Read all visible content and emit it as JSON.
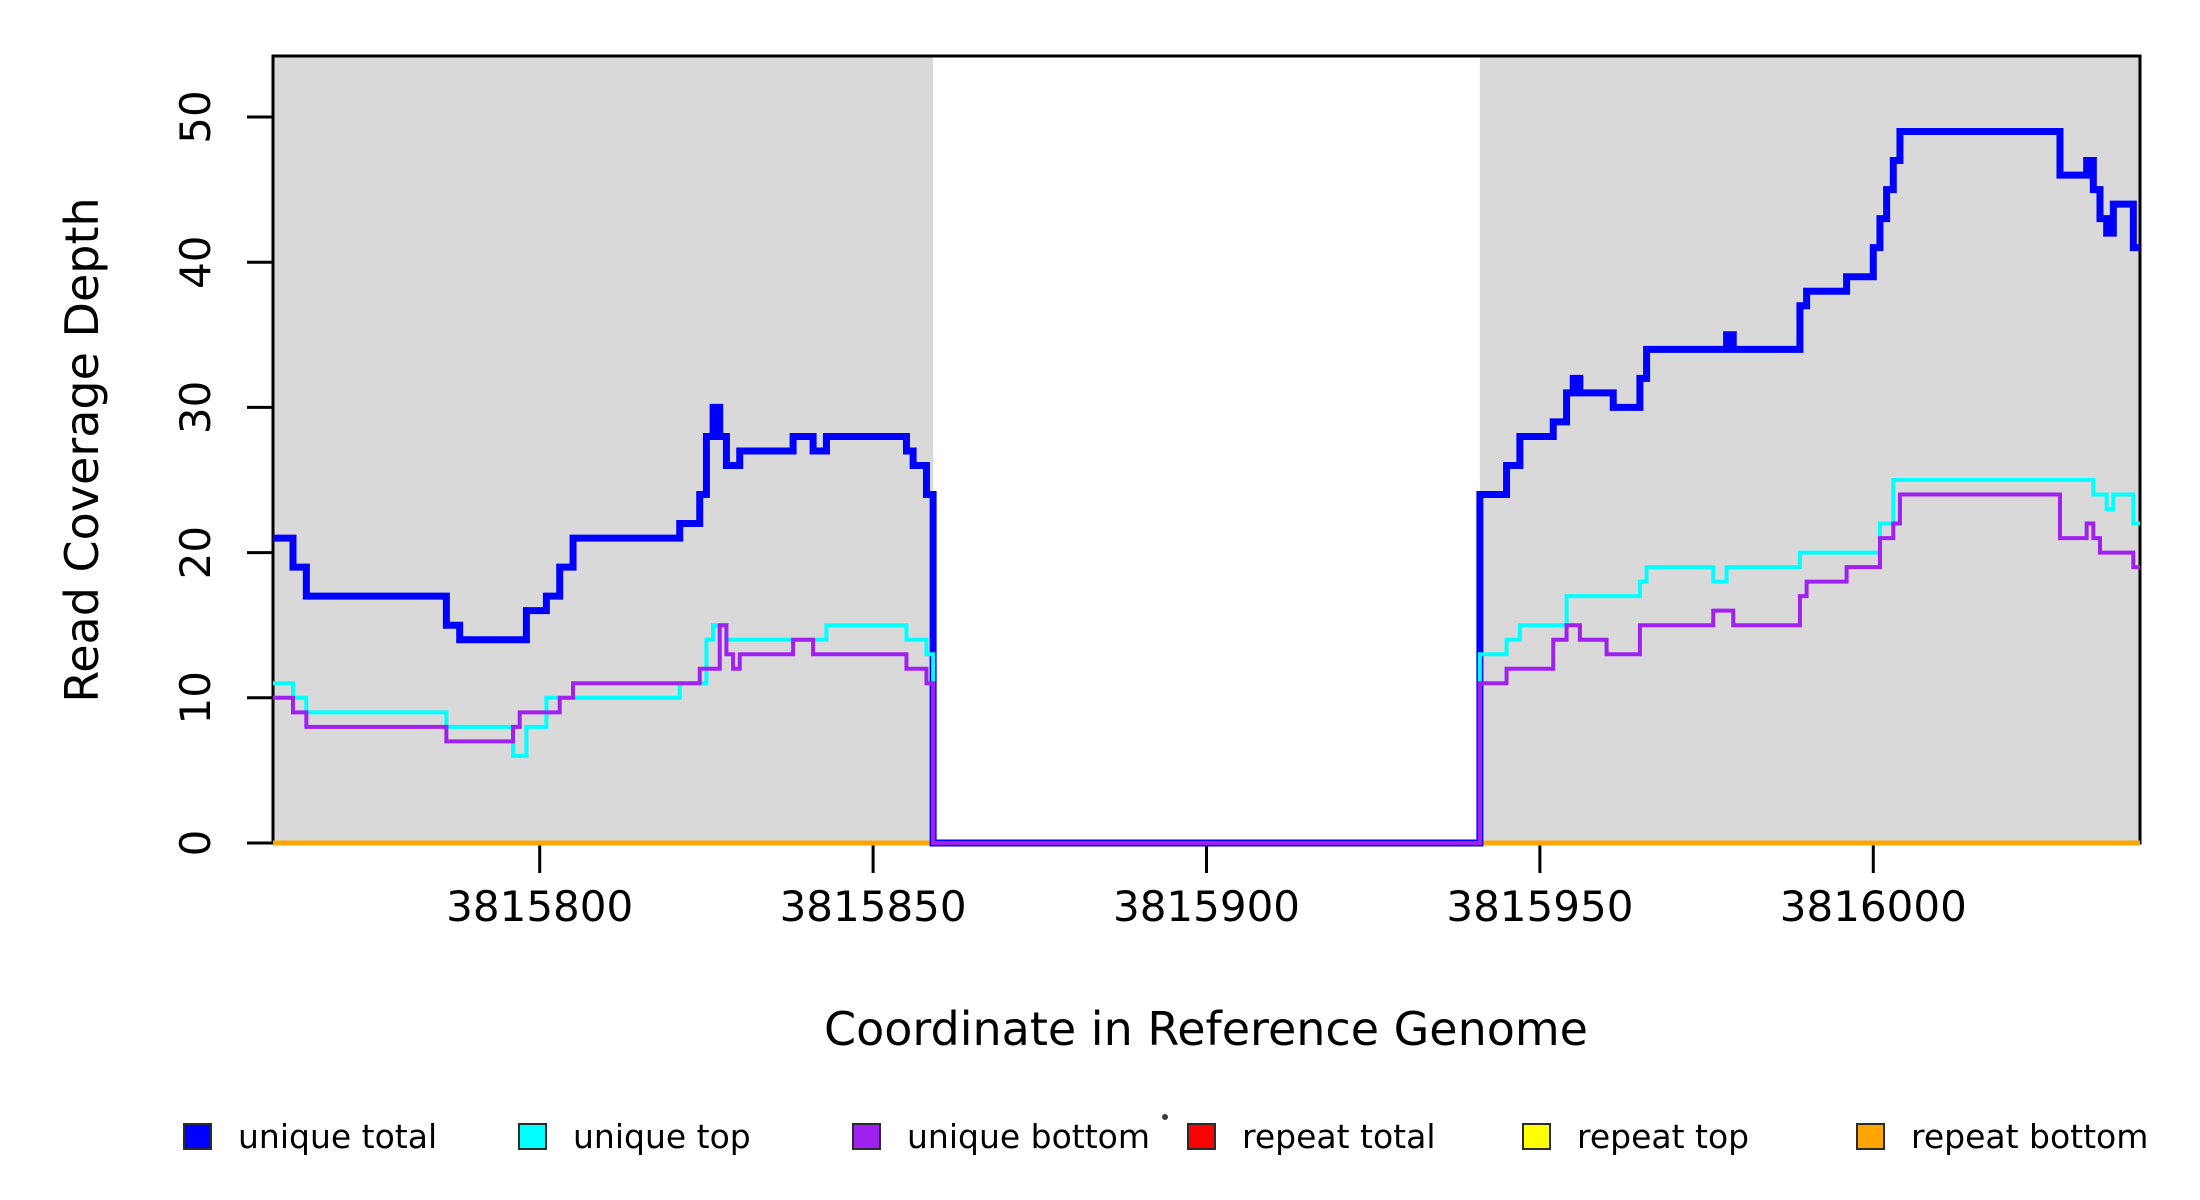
{
  "axes": {
    "x_title": "Coordinate in Reference Genome",
    "y_title": "Read Coverage Depth",
    "x_ticks": [
      3815800,
      3815850,
      3815900,
      3815950,
      3816000
    ],
    "y_ticks": [
      0,
      10,
      20,
      30,
      40,
      50
    ]
  },
  "colors": {
    "shaded_region": "#D9D9D9",
    "plot_border": "#000000",
    "unique_total": "#0000FF",
    "unique_top": "#00FFFF",
    "unique_bottom": "#A020F0",
    "repeat_total": "#FF0000",
    "repeat_top": "#FFFF00",
    "repeat_bottom": "#FFA500"
  },
  "legend": {
    "items": [
      {
        "label": "unique total",
        "color": "#0000FF"
      },
      {
        "label": "unique top",
        "color": "#00FFFF"
      },
      {
        "label": "unique bottom",
        "color": "#A020F0"
      },
      {
        "label": "repeat total",
        "color": "#FF0000"
      },
      {
        "label": "repeat top",
        "color": "#FFFF00"
      },
      {
        "label": "repeat bottom",
        "color": "#FFA500"
      }
    ]
  },
  "chart_data": {
    "type": "line",
    "subtype": "step-coverage",
    "title": "",
    "xlabel": "Coordinate in Reference Genome",
    "ylabel": "Read Coverage Depth",
    "xlim": [
      3815760,
      3816040
    ],
    "ylim": [
      0,
      54
    ],
    "x_ticks": [
      3815800,
      3815850,
      3815900,
      3815950,
      3816000
    ],
    "y_ticks": [
      0,
      10,
      20,
      30,
      40,
      50
    ],
    "grid": false,
    "legend_position": "bottom",
    "shaded_regions": [
      {
        "x0": 3815760,
        "x1": 3815859,
        "color": "#D9D9D9"
      },
      {
        "x0": 3815941,
        "x1": 3816040,
        "color": "#D9D9D9"
      }
    ],
    "series": [
      {
        "name": "repeat total",
        "color": "#FF0000",
        "line_width": 5,
        "steps": [
          [
            3815760,
            0
          ],
          [
            3816040,
            0
          ]
        ]
      },
      {
        "name": "repeat top",
        "color": "#FFFF00",
        "line_width": 5,
        "steps": [
          [
            3815760,
            0
          ],
          [
            3816040,
            0
          ]
        ]
      },
      {
        "name": "repeat bottom",
        "color": "#FFA500",
        "line_width": 5,
        "steps": [
          [
            3815760,
            0
          ],
          [
            3816040,
            0
          ]
        ]
      },
      {
        "name": "unique total",
        "color": "#0000FF",
        "line_width": 7,
        "steps": [
          [
            3815760,
            21
          ],
          [
            3815763,
            19
          ],
          [
            3815765,
            17
          ],
          [
            3815786,
            15
          ],
          [
            3815788,
            14
          ],
          [
            3815798,
            16
          ],
          [
            3815801,
            17
          ],
          [
            3815803,
            19
          ],
          [
            3815805,
            21
          ],
          [
            3815821,
            22
          ],
          [
            3815824,
            24
          ],
          [
            3815825,
            28
          ],
          [
            3815826,
            30
          ],
          [
            3815827,
            28
          ],
          [
            3815828,
            26
          ],
          [
            3815830,
            27
          ],
          [
            3815838,
            28
          ],
          [
            3815841,
            27
          ],
          [
            3815843,
            28
          ],
          [
            3815855,
            27
          ],
          [
            3815856,
            26
          ],
          [
            3815858,
            24
          ],
          [
            3815859,
            0
          ],
          [
            3815941,
            24
          ],
          [
            3815945,
            26
          ],
          [
            3815947,
            28
          ],
          [
            3815952,
            29
          ],
          [
            3815954,
            31
          ],
          [
            3815955,
            32
          ],
          [
            3815956,
            31
          ],
          [
            3815961,
            30
          ],
          [
            3815965,
            32
          ],
          [
            3815966,
            34
          ],
          [
            3815978,
            35
          ],
          [
            3815979,
            34
          ],
          [
            3815989,
            37
          ],
          [
            3815990,
            38
          ],
          [
            3815996,
            39
          ],
          [
            3816000,
            41
          ],
          [
            3816001,
            43
          ],
          [
            3816002,
            45
          ],
          [
            3816003,
            47
          ],
          [
            3816004,
            49
          ],
          [
            3816028,
            46
          ],
          [
            3816032,
            47
          ],
          [
            3816033,
            45
          ],
          [
            3816034,
            43
          ],
          [
            3816035,
            42
          ],
          [
            3816036,
            44
          ],
          [
            3816039,
            41
          ],
          [
            3816040,
            41
          ]
        ]
      },
      {
        "name": "unique top",
        "color": "#00FFFF",
        "line_width": 4,
        "steps": [
          [
            3815760,
            11
          ],
          [
            3815763,
            10
          ],
          [
            3815765,
            9
          ],
          [
            3815786,
            8
          ],
          [
            3815796,
            6
          ],
          [
            3815798,
            8
          ],
          [
            3815801,
            10
          ],
          [
            3815821,
            11
          ],
          [
            3815825,
            14
          ],
          [
            3815826,
            15
          ],
          [
            3815828,
            14
          ],
          [
            3815843,
            15
          ],
          [
            3815855,
            14
          ],
          [
            3815858,
            13
          ],
          [
            3815859,
            0
          ],
          [
            3815941,
            13
          ],
          [
            3815945,
            14
          ],
          [
            3815947,
            15
          ],
          [
            3815954,
            17
          ],
          [
            3815965,
            18
          ],
          [
            3815966,
            19
          ],
          [
            3815976,
            18
          ],
          [
            3815978,
            19
          ],
          [
            3815989,
            20
          ],
          [
            3816001,
            22
          ],
          [
            3816003,
            25
          ],
          [
            3816033,
            24
          ],
          [
            3816035,
            23
          ],
          [
            3816036,
            24
          ],
          [
            3816039,
            22
          ],
          [
            3816040,
            22
          ]
        ]
      },
      {
        "name": "unique bottom",
        "color": "#A020F0",
        "line_width": 4,
        "steps": [
          [
            3815760,
            10
          ],
          [
            3815763,
            9
          ],
          [
            3815765,
            8
          ],
          [
            3815786,
            7
          ],
          [
            3815796,
            8
          ],
          [
            3815797,
            9
          ],
          [
            3815803,
            10
          ],
          [
            3815805,
            11
          ],
          [
            3815824,
            12
          ],
          [
            3815827,
            15
          ],
          [
            3815828,
            13
          ],
          [
            3815829,
            12
          ],
          [
            3815830,
            13
          ],
          [
            3815838,
            14
          ],
          [
            3815841,
            13
          ],
          [
            3815855,
            12
          ],
          [
            3815858,
            11
          ],
          [
            3815859,
            0
          ],
          [
            3815941,
            11
          ],
          [
            3815945,
            12
          ],
          [
            3815952,
            14
          ],
          [
            3815954,
            15
          ],
          [
            3815956,
            14
          ],
          [
            3815960,
            13
          ],
          [
            3815965,
            15
          ],
          [
            3815976,
            16
          ],
          [
            3815979,
            15
          ],
          [
            3815989,
            17
          ],
          [
            3815990,
            18
          ],
          [
            3815996,
            19
          ],
          [
            3816001,
            21
          ],
          [
            3816003,
            22
          ],
          [
            3816004,
            24
          ],
          [
            3816028,
            21
          ],
          [
            3816032,
            22
          ],
          [
            3816033,
            21
          ],
          [
            3816034,
            20
          ],
          [
            3816039,
            19
          ],
          [
            3816040,
            19
          ]
        ]
      }
    ]
  }
}
